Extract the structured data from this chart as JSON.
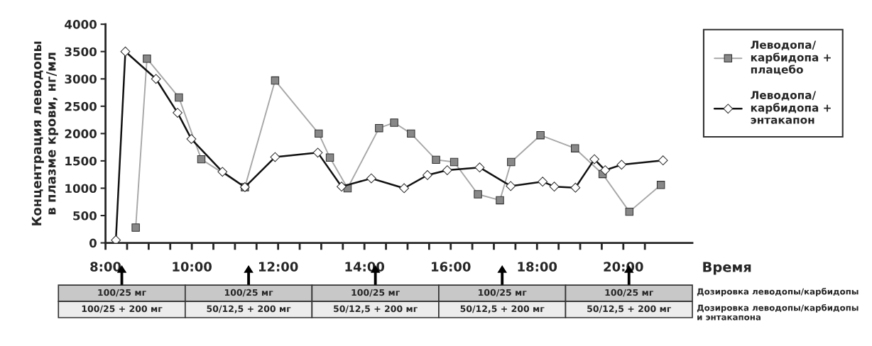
{
  "chart_data": {
    "type": "line",
    "ylabel": "Концентрация леводопы\nв плазме крови, нг/мл",
    "xlabel": "Время",
    "xlim": [
      8,
      21.6
    ],
    "xticks": [
      {
        "value": 8,
        "label": "8:00"
      },
      {
        "value": 8.5,
        "label": null
      },
      {
        "value": 9,
        "label": null
      },
      {
        "value": 9.5,
        "label": null
      },
      {
        "value": 10,
        "label": "10:00"
      },
      {
        "value": 10.5,
        "label": null
      },
      {
        "value": 11,
        "label": null
      },
      {
        "value": 11.5,
        "label": null
      },
      {
        "value": 12,
        "label": "12:00"
      },
      {
        "value": 12.5,
        "label": null
      },
      {
        "value": 13,
        "label": null
      },
      {
        "value": 13.5,
        "label": null
      },
      {
        "value": 14,
        "label": "14:00"
      },
      {
        "value": 14.5,
        "label": null
      },
      {
        "value": 15,
        "label": null
      },
      {
        "value": 15.5,
        "label": null
      },
      {
        "value": 16,
        "label": "16:00"
      },
      {
        "value": 16.5,
        "label": null
      },
      {
        "value": 17,
        "label": null
      },
      {
        "value": 17.5,
        "label": null
      },
      {
        "value": 18,
        "label": "18:00"
      },
      {
        "value": 18.5,
        "label": null
      },
      {
        "value": 19,
        "label": null
      },
      {
        "value": 19.5,
        "label": null
      },
      {
        "value": 20,
        "label": "20:00"
      },
      {
        "value": 20.5,
        "label": null
      }
    ],
    "ylim": [
      0,
      4000
    ],
    "yticks": [
      0,
      500,
      1000,
      1500,
      2000,
      2500,
      3000,
      3500,
      4000
    ],
    "grid": false,
    "legend": "top right",
    "line_style": "solid",
    "series": [
      {
        "name": "Леводопа/\nкарбидопа +\nплацебо",
        "color": "#a8a8a8",
        "marker": "square",
        "x": [
          8.7,
          8.96,
          9.7,
          10.22,
          11.23,
          11.93,
          12.94,
          13.2,
          13.61,
          14.34,
          14.69,
          15.08,
          15.66,
          16.08,
          16.63,
          17.14,
          17.4,
          18.08,
          18.88,
          19.52,
          20.14,
          20.87
        ],
        "values": [
          280,
          3370,
          2660,
          1530,
          1020,
          2970,
          2000,
          1560,
          1000,
          2100,
          2200,
          2000,
          1520,
          1480,
          890,
          780,
          1480,
          1970,
          1730,
          1260,
          570,
          1060
        ]
      },
      {
        "name": "Леводопа/\nкарбидопа +\nэнтакапон",
        "color": "#111111",
        "marker": "diamond",
        "x": [
          8.24,
          8.46,
          9.17,
          9.67,
          9.99,
          10.71,
          11.23,
          11.93,
          12.92,
          13.47,
          14.16,
          14.92,
          15.46,
          15.92,
          16.67,
          17.39,
          18.13,
          18.4,
          18.89,
          19.33,
          19.58,
          19.96,
          20.92
        ],
        "values": [
          50,
          3500,
          3000,
          2380,
          1900,
          1300,
          1020,
          1570,
          1650,
          1030,
          1180,
          1000,
          1240,
          1330,
          1380,
          1040,
          1120,
          1030,
          1010,
          1530,
          1330,
          1430,
          1510
        ]
      }
    ],
    "annotations": [
      "100/25 мг",
      "100/25 мг",
      "100/25 мг",
      "100/25 мг",
      "100/25 мг",
      "Дозировка леводопы/карбидопы",
      "100/25 + 200 мг",
      "50/12,5 + 200 мг",
      "50/12,5 + 200 мг",
      "50/12,5 + 200 мг",
      "50/12,5 + 200 мг",
      "Дозировка леводопы/карбидопы\nи энтакапона"
    ]
  }
}
